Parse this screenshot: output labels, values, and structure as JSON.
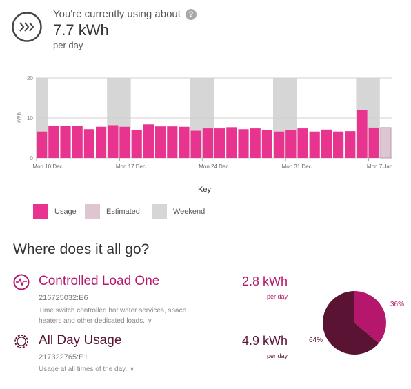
{
  "header": {
    "pre_text": "You're currently using about",
    "help_icon": "?",
    "value": "7.7 kWh",
    "sub": "per day"
  },
  "colors": {
    "usage": "#e9348f",
    "estimated": "#ddc6d1",
    "weekend": "#d6d6d6",
    "controlled": "#b5176c",
    "allday": "#5a1333",
    "accent_text": "#b5176c",
    "allday_text": "#5a1333"
  },
  "chart_data": {
    "type": "bar",
    "ylabel": "kWh",
    "ylim": [
      0,
      20
    ],
    "yticks": [
      0,
      10,
      20
    ],
    "xtick_labels": [
      "Mon 10 Dec",
      "Mon 17 Dec",
      "Mon 24 Dec",
      "Mon 31 Dec",
      "Mon 7 Jan"
    ],
    "xtick_index": [
      0,
      7,
      14,
      21,
      28
    ],
    "values": [
      6.6,
      8.0,
      8.0,
      8.0,
      7.2,
      7.8,
      8.2,
      7.8,
      7.0,
      8.4,
      7.9,
      7.9,
      7.8,
      6.8,
      7.4,
      7.4,
      7.7,
      7.2,
      7.4,
      7.0,
      6.6,
      7.0,
      7.4,
      6.6,
      7.1,
      6.6,
      6.7,
      12.0,
      7.6,
      7.6
    ],
    "estimated": [
      false,
      false,
      false,
      false,
      false,
      false,
      false,
      false,
      false,
      false,
      false,
      false,
      false,
      false,
      false,
      false,
      false,
      false,
      false,
      false,
      false,
      false,
      false,
      false,
      false,
      false,
      false,
      false,
      false,
      true
    ],
    "weekend_ranges": [
      [
        0,
        0
      ],
      [
        6,
        7
      ],
      [
        13,
        14
      ],
      [
        20,
        21
      ],
      [
        27,
        28
      ]
    ]
  },
  "key": {
    "title": "Key:",
    "usage": "Usage",
    "estimated": "Estimated",
    "weekend": "Weekend"
  },
  "section": {
    "title": "Where does it all go?"
  },
  "controlled_load": {
    "name": "Controlled Load One",
    "id": "216725032:E6",
    "desc_line1": "Time switch controlled hot water services, space",
    "desc_line2": "heaters and other dedicated loads.",
    "value": "2.8 kWh",
    "per": "per day",
    "percent": "36%",
    "fraction": 0.36
  },
  "all_day": {
    "name": "All Day Usage",
    "id": "217322765:E1",
    "desc": "Usage at all times of the day.",
    "value": "4.9 kWh",
    "per": "per day",
    "percent": "64%",
    "fraction": 0.64
  }
}
